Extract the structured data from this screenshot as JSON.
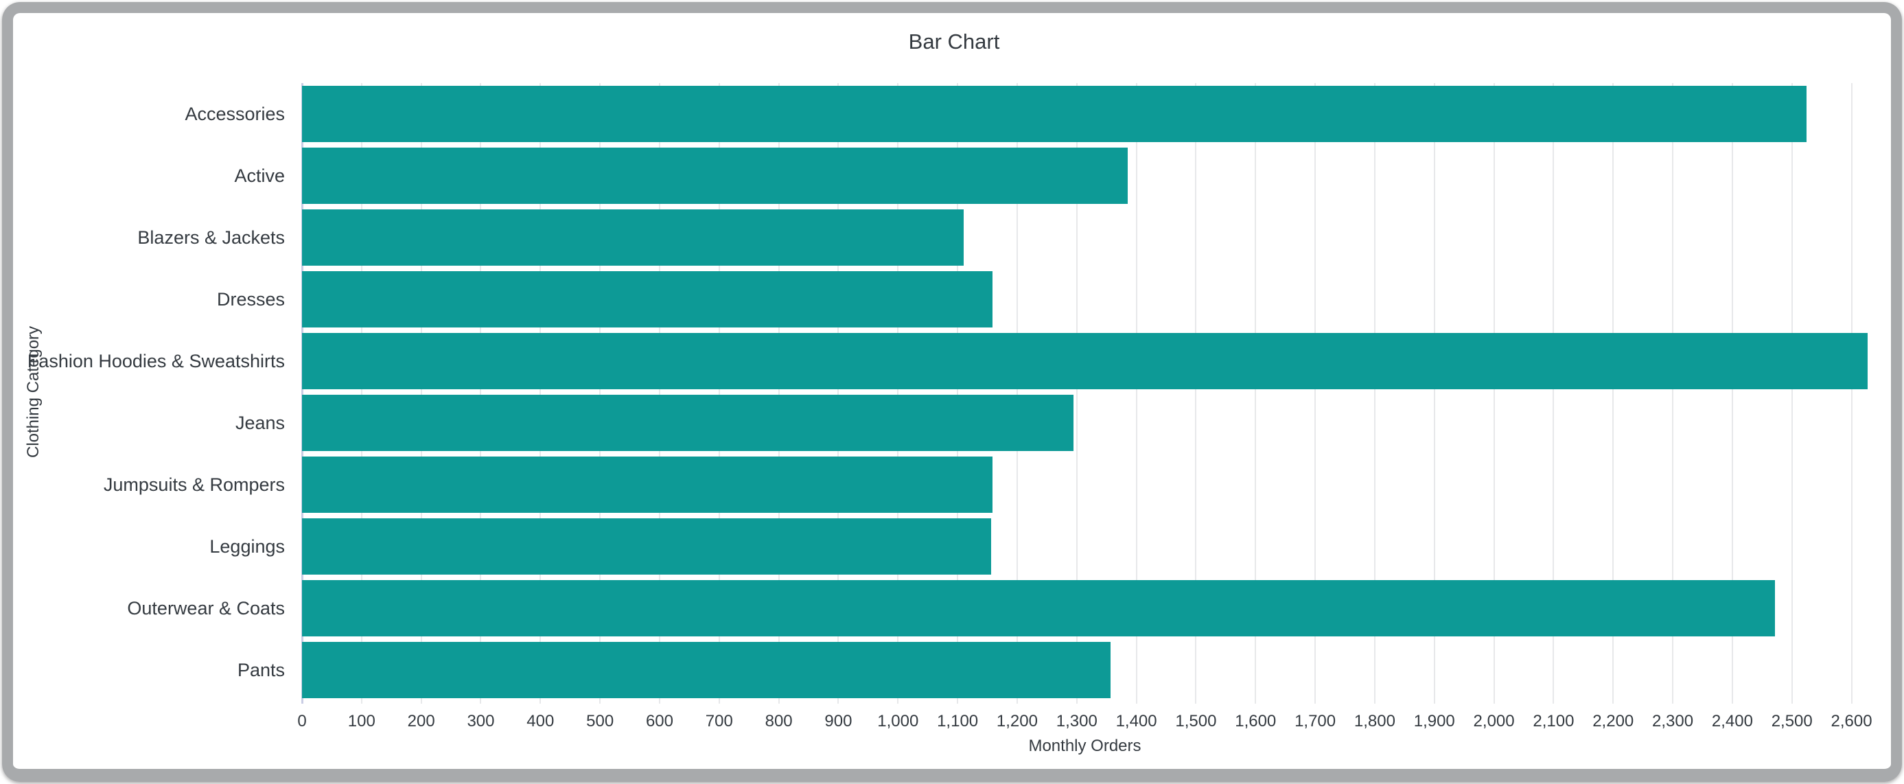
{
  "window": {
    "frame_color": "#a8aaac",
    "background_color": "#ffffff"
  },
  "chart_data": {
    "type": "bar",
    "orientation": "horizontal",
    "title": "Bar Chart",
    "xlabel": "Monthly Orders",
    "ylabel": "Clothing Category",
    "categories": [
      "Accessories",
      "Active",
      "Blazers & Jackets",
      "Dresses",
      "Fashion Hoodies & Sweatshirts",
      "Jeans",
      "Jumpsuits & Rompers",
      "Leggings",
      "Outerwear & Coats",
      "Pants"
    ],
    "values": [
      2525,
      1386,
      1110,
      1159,
      2627,
      1295,
      1159,
      1156,
      2471,
      1357
    ],
    "xlim": [
      0,
      2627
    ],
    "x_ticks": [
      0,
      100,
      200,
      300,
      400,
      500,
      600,
      700,
      800,
      900,
      1000,
      1100,
      1200,
      1300,
      1400,
      1500,
      1600,
      1700,
      1800,
      1900,
      2000,
      2100,
      2200,
      2300,
      2400,
      2500,
      2600
    ],
    "x_tick_labels": [
      "0",
      "100",
      "200",
      "300",
      "400",
      "500",
      "600",
      "700",
      "800",
      "900",
      "1,000",
      "1,100",
      "1,200",
      "1,300",
      "1,400",
      "1,500",
      "1,600",
      "1,700",
      "1,800",
      "1,900",
      "2,000",
      "2,100",
      "2,200",
      "2,300",
      "2,400",
      "2,500",
      "2,600"
    ],
    "grid": "vertical-only",
    "legend": "none",
    "colors": {
      "bar": "#0d9a96",
      "gridline": "#e7e8ea",
      "zero_line": "#c9cde4",
      "text": "#343a40"
    }
  }
}
